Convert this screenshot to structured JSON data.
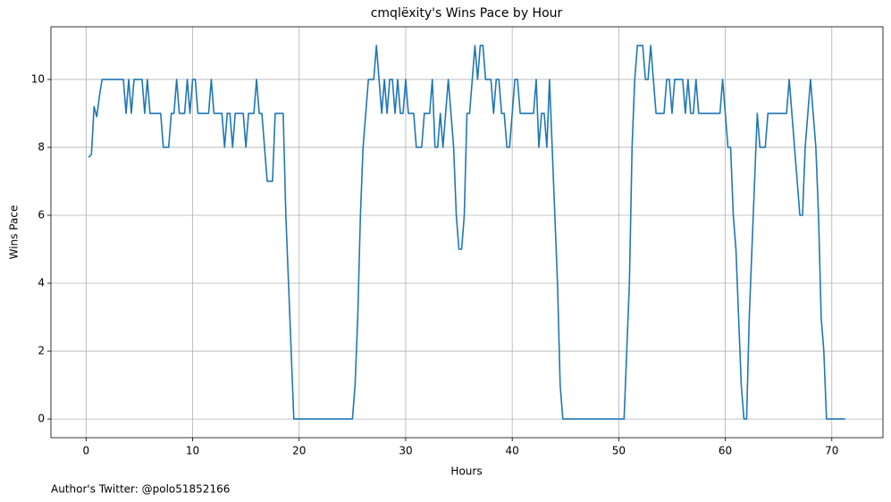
{
  "chart_data": {
    "type": "line",
    "title": "cmqlëxity's Wins Pace by Hour",
    "xlabel": "Hours",
    "ylabel": "Wins Pace",
    "annotation": "Author's Twitter: @polo51852166",
    "x": [
      0.25,
      0.5,
      0.75,
      1.0,
      1.25,
      1.5,
      3.5,
      3.75,
      4.0,
      4.25,
      4.5,
      5.25,
      5.5,
      5.75,
      6.0,
      7.0,
      7.25,
      7.75,
      8.0,
      8.25,
      8.5,
      8.75,
      9.25,
      9.5,
      9.75,
      10.0,
      10.25,
      10.5,
      11.5,
      11.75,
      12.0,
      12.75,
      13.0,
      13.25,
      13.5,
      13.75,
      14.0,
      14.75,
      15.0,
      15.25,
      15.75,
      16.0,
      16.25,
      16.5,
      16.75,
      17.0,
      17.5,
      17.75,
      18.5,
      18.75,
      19.5,
      25.0,
      25.25,
      25.5,
      25.75,
      26.0,
      26.5,
      27.0,
      27.25,
      27.5,
      27.75,
      28.0,
      28.25,
      28.5,
      28.75,
      29.0,
      29.25,
      29.5,
      29.75,
      30.0,
      30.25,
      30.75,
      31.0,
      31.5,
      31.75,
      32.25,
      32.5,
      32.75,
      33.0,
      33.25,
      33.5,
      33.75,
      34.0,
      34.5,
      34.75,
      35.0,
      35.25,
      35.5,
      35.75,
      36.0,
      36.25,
      36.5,
      36.75,
      37.0,
      37.25,
      37.5,
      38.0,
      38.25,
      38.5,
      38.75,
      39.0,
      39.25,
      39.5,
      39.75,
      40.0,
      40.25,
      40.5,
      40.75,
      42.0,
      42.25,
      42.5,
      42.75,
      43.0,
      43.25,
      43.5,
      43.75,
      44.25,
      44.5,
      44.75,
      50.5,
      50.75,
      51.0,
      51.25,
      51.5,
      51.75,
      52.25,
      52.5,
      52.75,
      53.0,
      53.25,
      53.5,
      54.25,
      54.5,
      54.75,
      55.0,
      55.25,
      56.0,
      56.25,
      56.5,
      56.75,
      57.0,
      57.25,
      57.5,
      59.5,
      59.75,
      60.0,
      60.25,
      60.5,
      60.75,
      61.0,
      61.25,
      61.5,
      61.75,
      62.0,
      62.25,
      62.5,
      62.75,
      63.0,
      63.25,
      63.75,
      64.0,
      65.75,
      66.0,
      66.25,
      66.5,
      66.75,
      67.0,
      67.25,
      67.5,
      67.75,
      68.0,
      68.25,
      68.5,
      68.75,
      69.0,
      69.25,
      69.5,
      71.25
    ],
    "series": [
      {
        "name": "Wins Pace",
        "color": "#1f77b4",
        "values": [
          7.7,
          7.8,
          9.2,
          8.9,
          9.5,
          10,
          10,
          9,
          10,
          9,
          10,
          10,
          9,
          10,
          9,
          9,
          8,
          8,
          9,
          9,
          10,
          9,
          9,
          10,
          9,
          10,
          10,
          9,
          9,
          10,
          9,
          9,
          8,
          9,
          9,
          8,
          9,
          9,
          8,
          9,
          9,
          10,
          9,
          9,
          8,
          7,
          7,
          9,
          9,
          6,
          0,
          0,
          1,
          3,
          6,
          8,
          10,
          10,
          11,
          10,
          9,
          10,
          9,
          10,
          10,
          9,
          10,
          9,
          9,
          10,
          9,
          9,
          8,
          8,
          9,
          9,
          10,
          8,
          8,
          9,
          8,
          9,
          10,
          8,
          6,
          5,
          5,
          6,
          9,
          9,
          10,
          11,
          10,
          11,
          11,
          10,
          10,
          9,
          10,
          10,
          9,
          9,
          8,
          8,
          9,
          10,
          10,
          9,
          9,
          10,
          8,
          9,
          9,
          8,
          10,
          8,
          4,
          1,
          0,
          0,
          2,
          4,
          8,
          10,
          11,
          11,
          10,
          10,
          11,
          10,
          9,
          9,
          10,
          10,
          9,
          10,
          10,
          9,
          10,
          9,
          9,
          10,
          9,
          9,
          10,
          9,
          8,
          8,
          6,
          5,
          3,
          1,
          0,
          0,
          3,
          5,
          7,
          9,
          8,
          8,
          9,
          9,
          10,
          9,
          8,
          7,
          6,
          6,
          8,
          9,
          10,
          9,
          8,
          6,
          3,
          2,
          0,
          0
        ]
      }
    ],
    "xlim": [
      -3.3,
      74.8
    ],
    "xticks": [
      0,
      10,
      20,
      30,
      40,
      50,
      60,
      70
    ],
    "ylim": [
      -0.55,
      11.55
    ],
    "yticks": [
      0,
      2,
      4,
      6,
      8,
      10
    ],
    "grid": true
  }
}
